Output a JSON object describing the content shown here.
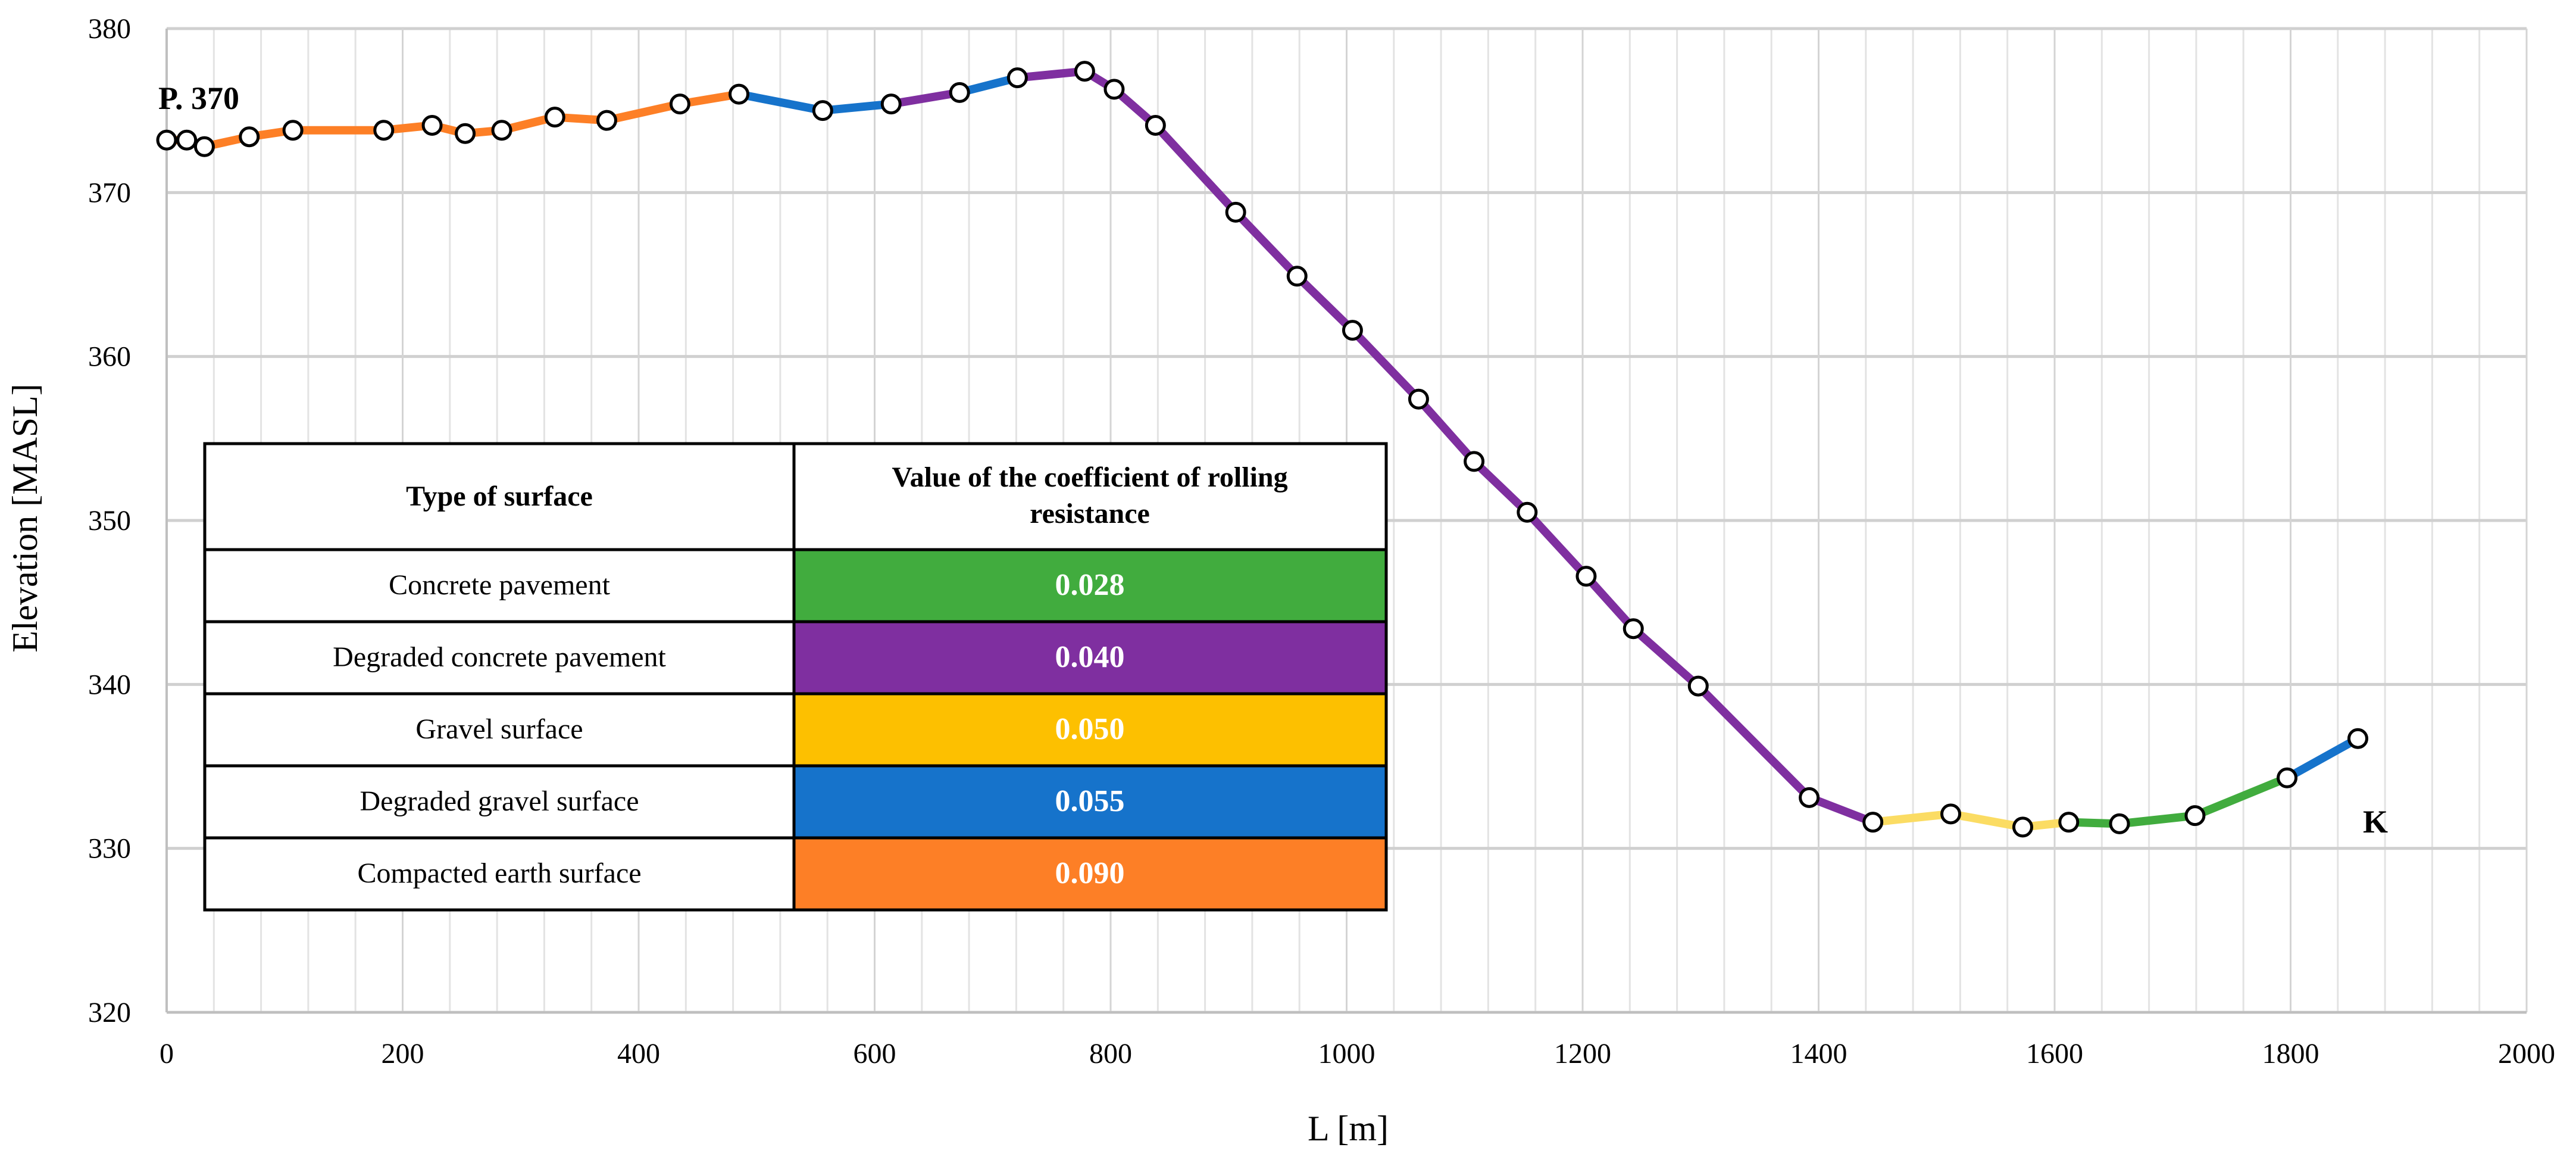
{
  "chart_data": {
    "type": "line",
    "title": "",
    "xlabel": "L [m]",
    "ylabel": "Elevation [MASL]",
    "xlim": [
      0,
      2000
    ],
    "ylim": [
      320,
      380
    ],
    "x_ticks": [
      0,
      200,
      400,
      600,
      800,
      1000,
      1200,
      1400,
      1600,
      1800,
      2000
    ],
    "y_ticks": [
      320,
      330,
      340,
      350,
      360,
      370,
      380
    ],
    "x_minor_step": 40,
    "grid": true,
    "points": [
      {
        "x": 0,
        "y": 373.2
      },
      {
        "x": 17,
        "y": 373.2
      },
      {
        "x": 32,
        "y": 372.8
      },
      {
        "x": 70,
        "y": 373.4
      },
      {
        "x": 107,
        "y": 373.8
      },
      {
        "x": 184,
        "y": 373.8
      },
      {
        "x": 225,
        "y": 374.1
      },
      {
        "x": 253,
        "y": 373.6
      },
      {
        "x": 284,
        "y": 373.8
      },
      {
        "x": 329,
        "y": 374.6
      },
      {
        "x": 373,
        "y": 374.4
      },
      {
        "x": 435,
        "y": 375.4
      },
      {
        "x": 485,
        "y": 376.0
      },
      {
        "x": 556,
        "y": 375.0
      },
      {
        "x": 614,
        "y": 375.4
      },
      {
        "x": 672,
        "y": 376.1
      },
      {
        "x": 721,
        "y": 377.0
      },
      {
        "x": 778,
        "y": 377.4
      },
      {
        "x": 803,
        "y": 376.3
      },
      {
        "x": 838,
        "y": 374.1
      },
      {
        "x": 906,
        "y": 368.8
      },
      {
        "x": 958,
        "y": 364.9
      },
      {
        "x": 1005,
        "y": 361.6
      },
      {
        "x": 1061,
        "y": 357.4
      },
      {
        "x": 1108,
        "y": 353.6
      },
      {
        "x": 1153,
        "y": 350.5
      },
      {
        "x": 1203,
        "y": 346.6
      },
      {
        "x": 1243,
        "y": 343.4
      },
      {
        "x": 1298,
        "y": 339.9
      },
      {
        "x": 1392,
        "y": 333.1
      },
      {
        "x": 1446,
        "y": 331.6
      },
      {
        "x": 1512,
        "y": 332.1
      },
      {
        "x": 1573,
        "y": 331.3
      },
      {
        "x": 1612,
        "y": 331.6
      },
      {
        "x": 1655,
        "y": 331.5
      },
      {
        "x": 1719,
        "y": 332.0
      },
      {
        "x": 1797,
        "y": 334.3
      },
      {
        "x": 1857,
        "y": 336.7
      }
    ],
    "segments": [
      {
        "surface": "Compacted earth surface",
        "from": 0,
        "to": 12
      },
      {
        "surface": "Degraded gravel surface",
        "from": 12,
        "to": 14
      },
      {
        "surface": "Degraded concrete pavement",
        "from": 14,
        "to": 15
      },
      {
        "surface": "Degraded gravel surface",
        "from": 15,
        "to": 16
      },
      {
        "surface": "Degraded concrete pavement",
        "from": 16,
        "to": 30
      },
      {
        "surface": "Gravel surface",
        "from": 30,
        "to": 33
      },
      {
        "surface": "Concrete pavement",
        "from": 33,
        "to": 36
      },
      {
        "surface": "Degraded gravel surface",
        "from": 36,
        "to": 37
      }
    ],
    "annotations": [
      {
        "text": "P. 370",
        "x": 0,
        "y": 373.2,
        "anchor": "start-point"
      },
      {
        "text": "K",
        "x": 1857,
        "y": 336.7,
        "anchor": "end-point"
      }
    ],
    "legend_table": {
      "header": [
        "Type of surface",
        "Value of the coefficient of rolling resistance"
      ],
      "header_lines": [
        "Value of the coefficient of rolling",
        "resistance"
      ],
      "rows": [
        {
          "surface": "Concrete pavement",
          "value": "0.028",
          "color": "#41ac3e"
        },
        {
          "surface": "Degraded concrete pavement",
          "value": "0.040",
          "color": "#7f2fa0"
        },
        {
          "surface": "Gravel surface",
          "value": "0.050",
          "color": "#fdc000"
        },
        {
          "surface": "Degraded gravel surface",
          "value": "0.055",
          "color": "#1673cb"
        },
        {
          "surface": "Compacted earth surface",
          "value": "0.090",
          "color": "#fd7f26"
        }
      ]
    },
    "line_colors": {
      "Concrete pavement": "#41ac3e",
      "Degraded concrete pavement": "#7f2fa0",
      "Gravel surface": "#fbdc63",
      "Degraded gravel surface": "#1673cb",
      "Compacted earth surface": "#fd7f26"
    }
  }
}
